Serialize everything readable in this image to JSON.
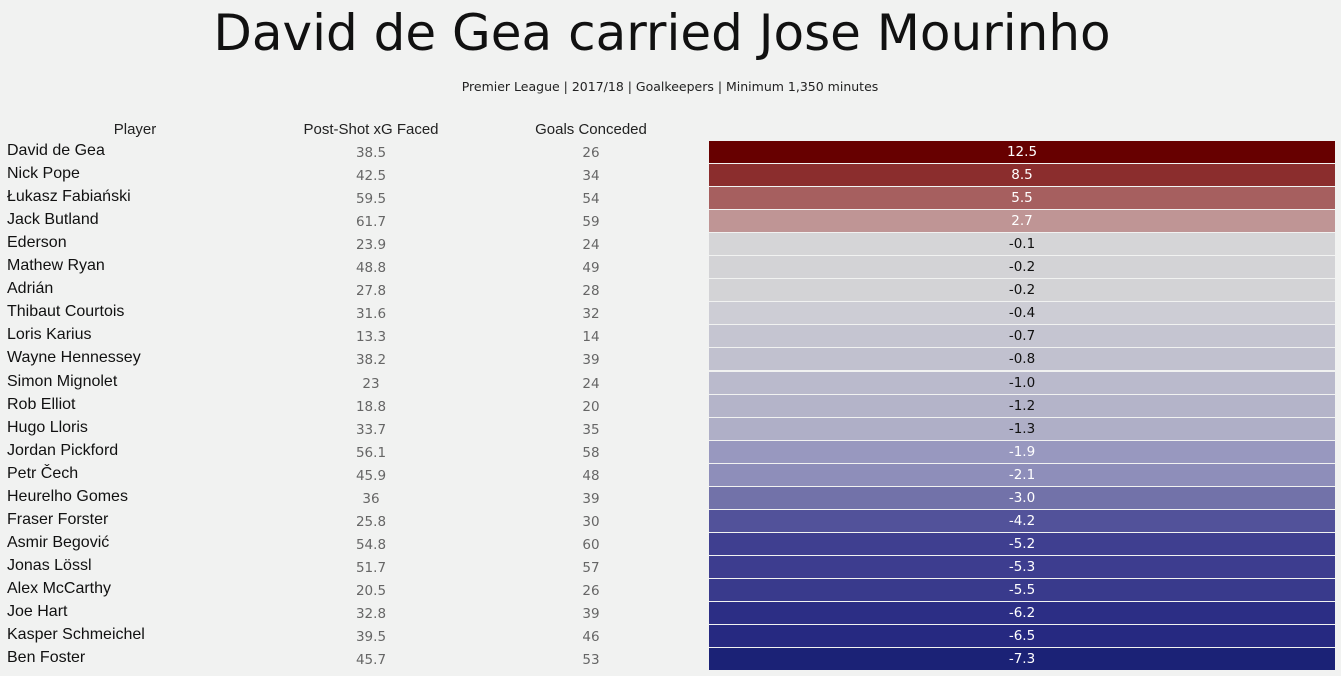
{
  "title": "David de Gea carried Jose Mourinho",
  "subtitle": "Premier League | 2017/18 | Goalkeepers | Minimum 1,350 minutes",
  "headers": {
    "player": "Player",
    "psxg": "Post-Shot xG Faced",
    "goals": "Goals Conceded",
    "diff": ""
  },
  "chart_data": {
    "type": "table",
    "title": "David de Gea carried Jose Mourinho",
    "subtitle": "Premier League | 2017/18 | Goalkeepers | Minimum 1,350 minutes",
    "columns": [
      "Player",
      "Post-Shot xG Faced",
      "Goals Conceded",
      ""
    ],
    "rows": [
      {
        "player": "David de Gea",
        "psxg": "38.5",
        "goals": "26",
        "diff": "12.5",
        "color": "#670000"
      },
      {
        "player": "Nick Pope",
        "psxg": "42.5",
        "goals": "34",
        "diff": "8.5",
        "color": "#8b2d2d"
      },
      {
        "player": "Łukasz Fabiański",
        "psxg": "59.5",
        "goals": "54",
        "diff": "5.5",
        "color": "#a65f5f"
      },
      {
        "player": "Jack Butland",
        "psxg": "61.7",
        "goals": "59",
        "diff": "2.7",
        "color": "#bf9595"
      },
      {
        "player": "Ederson",
        "psxg": "23.9",
        "goals": "24",
        "diff": "-0.1",
        "color": "#d5d5d7"
      },
      {
        "player": "Mathew Ryan",
        "psxg": "48.8",
        "goals": "49",
        "diff": "-0.2",
        "color": "#d3d3d6"
      },
      {
        "player": "Adrián",
        "psxg": "27.8",
        "goals": "28",
        "diff": "-0.2",
        "color": "#d3d3d6"
      },
      {
        "player": "Thibaut Courtois",
        "psxg": "31.6",
        "goals": "32",
        "diff": "-0.4",
        "color": "#cdcdd5"
      },
      {
        "player": "Loris Karius",
        "psxg": "13.3",
        "goals": "14",
        "diff": "-0.7",
        "color": "#c5c5d1"
      },
      {
        "player": "Wayne Hennessey",
        "psxg": "38.2",
        "goals": "39",
        "diff": "-0.8",
        "color": "#c1c1cf"
      },
      {
        "player": "Simon Mignolet",
        "psxg": "23",
        "goals": "24",
        "diff": "-1.0",
        "color": "#babacc"
      },
      {
        "player": "Rob Elliot",
        "psxg": "18.8",
        "goals": "20",
        "diff": "-1.2",
        "color": "#b4b4c9"
      },
      {
        "player": "Hugo Lloris",
        "psxg": "33.7",
        "goals": "35",
        "diff": "-1.3",
        "color": "#afafc7"
      },
      {
        "player": "Jordan Pickford",
        "psxg": "56.1",
        "goals": "58",
        "diff": "-1.9",
        "color": "#9898bf"
      },
      {
        "player": "Petr Čech",
        "psxg": "45.9",
        "goals": "48",
        "diff": "-2.1",
        "color": "#8e8eba"
      },
      {
        "player": "Heurelho Gomes",
        "psxg": "36",
        "goals": "39",
        "diff": "-3.0",
        "color": "#7272a9"
      },
      {
        "player": "Fraser Forster",
        "psxg": "25.8",
        "goals": "30",
        "diff": "-4.2",
        "color": "#52529a"
      },
      {
        "player": "Asmir Begović",
        "psxg": "54.8",
        "goals": "60",
        "diff": "-5.2",
        "color": "#3f3f90"
      },
      {
        "player": "Jonas Lössl",
        "psxg": "51.7",
        "goals": "57",
        "diff": "-5.3",
        "color": "#3d3d8f"
      },
      {
        "player": "Alex McCarthy",
        "psxg": "20.5",
        "goals": "26",
        "diff": "-5.5",
        "color": "#393a8c"
      },
      {
        "player": "Joe Hart",
        "psxg": "32.8",
        "goals": "39",
        "diff": "-6.2",
        "color": "#2c2e85"
      },
      {
        "player": "Kasper Schmeichel",
        "psxg": "39.5",
        "goals": "46",
        "diff": "-6.5",
        "color": "#262981"
      },
      {
        "player": "Ben Foster",
        "psxg": "45.7",
        "goals": "53",
        "diff": "-7.3",
        "color": "#1b2276"
      }
    ]
  }
}
